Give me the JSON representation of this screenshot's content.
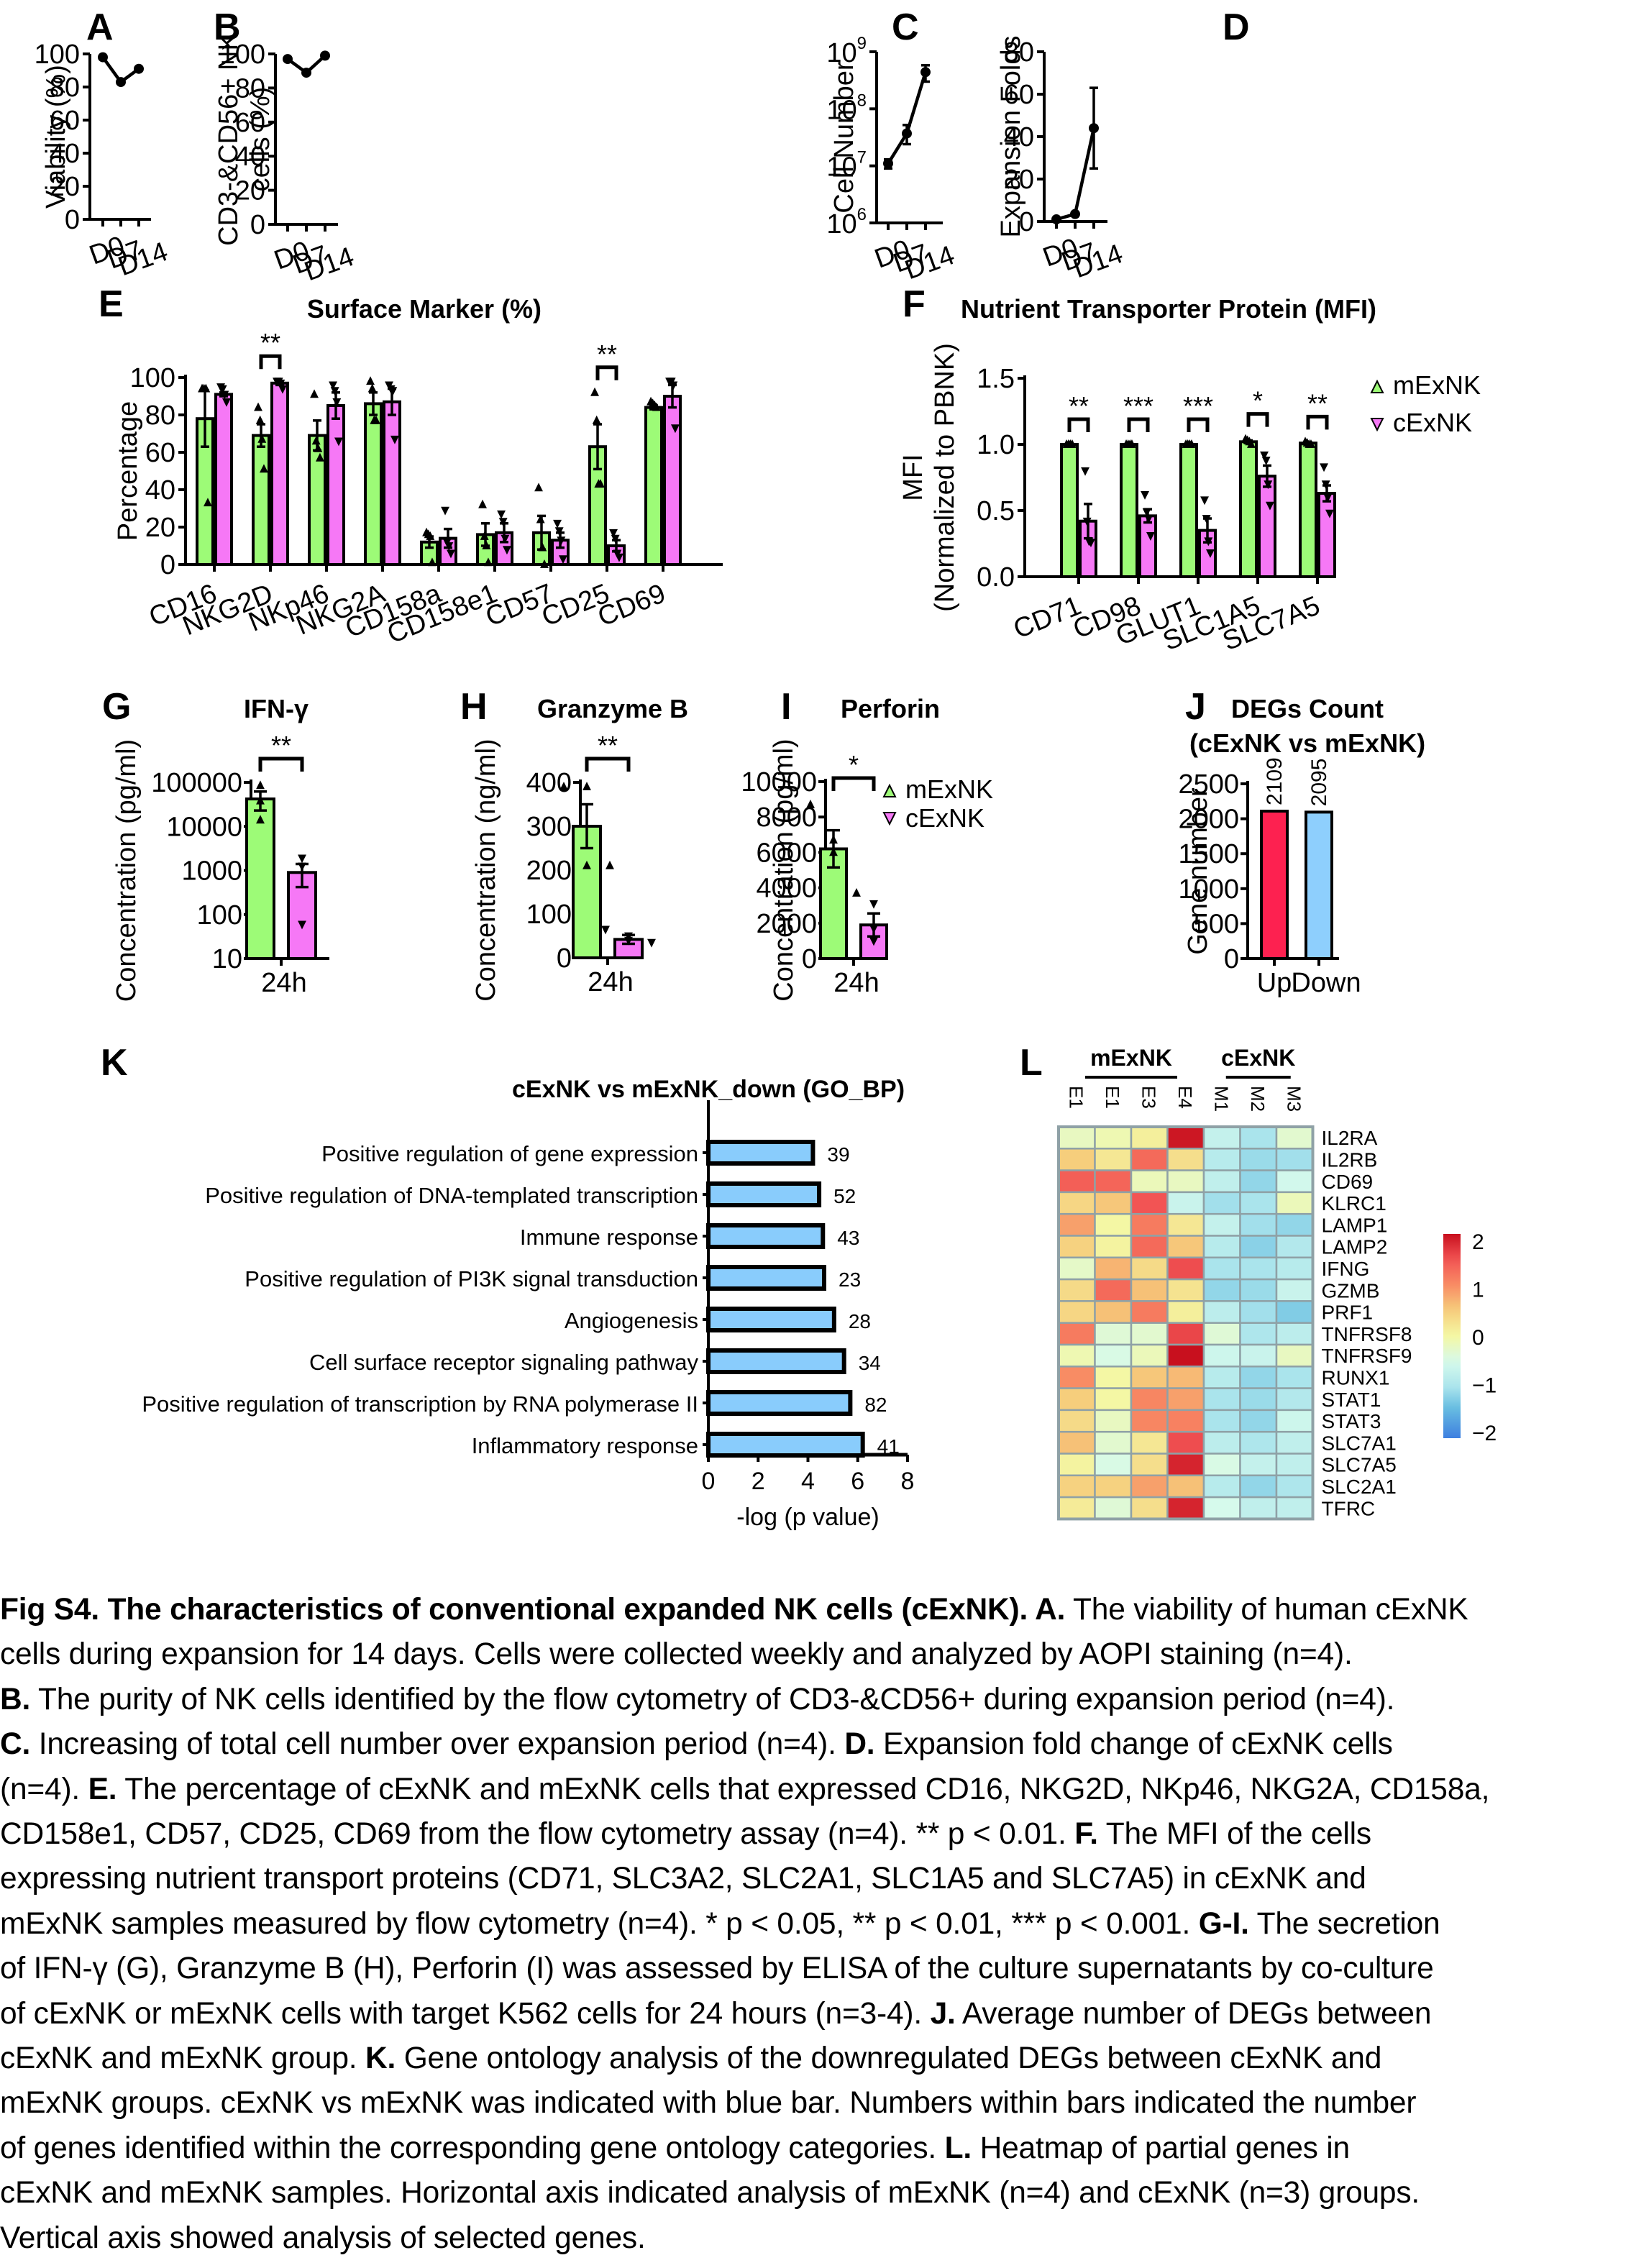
{
  "colors": {
    "mExNK": "#9dfb77",
    "cExNK": "#f678f6",
    "up": "#fd2150",
    "down": "#8ecffd",
    "go_bar": "#89ccfc",
    "heat_low": "#3d7fe0",
    "heat_mid": "#f8f7a6",
    "heat_high": "#c8101e",
    "heat_border": "#8fa1a6"
  },
  "legend": {
    "mExNK": "mExNK",
    "cExNK": "cExNK"
  },
  "chart_data": [
    {
      "panel": "A",
      "type": "line",
      "title": "",
      "xlabel": "",
      "ylabel": "Viability (%)",
      "categories": [
        "D0",
        "D7",
        "D14"
      ],
      "values": [
        98,
        83,
        91
      ],
      "yticks": [
        "0",
        "20",
        "40",
        "60",
        "80",
        "100"
      ],
      "ylim": [
        0,
        100
      ],
      "yscale": "linear"
    },
    {
      "panel": "B",
      "type": "line",
      "title": "",
      "xlabel": "",
      "ylabel_lines": [
        "CD3-&CD56+ NK",
        "cells (%)"
      ],
      "categories": [
        "D0",
        "D7",
        "D14"
      ],
      "values": [
        97,
        89,
        99
      ],
      "yticks": [
        "0",
        "20",
        "40",
        "60",
        "80",
        "100"
      ],
      "ylim": [
        0,
        100
      ],
      "yscale": "linear"
    },
    {
      "panel": "C",
      "type": "line",
      "title": "",
      "xlabel": "",
      "ylabel": "Cell Number",
      "categories": [
        "D0",
        "D7",
        "D14"
      ],
      "values": [
        11000000,
        37000000,
        440000000
      ],
      "err_low": [
        9000000,
        24000000,
        300000000
      ],
      "err_high": [
        13000000,
        52000000,
        580000000
      ],
      "yticks_exp": [
        "6",
        "7",
        "8",
        "9"
      ],
      "ylim": [
        1000000,
        1000000000
      ],
      "yscale": "log"
    },
    {
      "panel": "D",
      "type": "line",
      "title": "",
      "xlabel": "",
      "ylabel": "Expansion Folds",
      "categories": [
        "D0",
        "D7",
        "D14"
      ],
      "values": [
        1,
        3.5,
        44
      ],
      "err_low": [
        1,
        3.5,
        25
      ],
      "err_high": [
        1,
        3.5,
        63
      ],
      "yticks": [
        "0",
        "20",
        "40",
        "60",
        "80"
      ],
      "ylim": [
        0,
        80
      ],
      "yscale": "linear"
    },
    {
      "panel": "E",
      "type": "bar",
      "title": "Surface Marker (%)",
      "xlabel": "",
      "ylabel": "Percentage",
      "categories": [
        "CD16",
        "NKG2D",
        "NKp46",
        "NKG2A",
        "CD158a",
        "CD158e1",
        "CD57",
        "CD25",
        "CD69"
      ],
      "series": [
        {
          "name": "mExNK",
          "values": [
            78,
            69,
            69,
            86,
            12,
            16,
            17,
            63,
            84
          ],
          "sem": [
            15,
            6,
            8,
            6,
            3,
            6,
            9,
            12,
            1
          ],
          "points": [
            [
              94,
              94,
              94,
              33
            ],
            [
              84,
              77,
              67,
              51
            ],
            [
              91,
              66,
              62,
              57
            ],
            [
              98,
              94,
              77,
              77
            ],
            [
              17,
              16,
              15,
              1
            ],
            [
              32,
              15,
              10,
              1
            ],
            [
              41,
              24,
              9,
              0
            ],
            [
              92,
              77,
              43,
              43
            ],
            [
              87,
              86,
              85,
              84
            ]
          ]
        },
        {
          "name": "cExNK",
          "values": [
            91,
            97,
            85,
            87,
            14,
            17,
            13,
            10,
            90
          ],
          "sem": [
            1,
            1,
            7,
            7,
            5,
            5,
            4,
            3,
            6
          ],
          "points": [
            [
              95,
              94,
              91,
              87
            ],
            [
              98,
              98,
              97,
              94
            ],
            [
              96,
              93,
              87,
              66
            ],
            [
              96,
              94,
              93,
              67
            ],
            [
              29,
              12,
              10,
              6
            ],
            [
              27,
              23,
              14,
              8
            ],
            [
              22,
              18,
              13,
              3
            ],
            [
              17,
              14,
              6,
              4
            ],
            [
              98,
              98,
              96,
              73
            ]
          ]
        }
      ],
      "significance": [
        {
          "category": "NKG2D",
          "label": "**"
        },
        {
          "category": "CD25",
          "label": "**"
        }
      ],
      "yticks": [
        "0",
        "20",
        "40",
        "60",
        "80",
        "100"
      ],
      "ylim": [
        0,
        100
      ]
    },
    {
      "panel": "F",
      "type": "bar",
      "title": "Nutrient Transporter Protein (MFI)",
      "xlabel": "",
      "ylabel_lines": [
        "MFI",
        "(Normalized to PBNK)"
      ],
      "categories": [
        "CD71",
        "CD98",
        "GLUT1",
        "SLC1A5",
        "SLC7A5"
      ],
      "series": [
        {
          "name": "mExNK",
          "values": [
            1.0,
            1.0,
            1.0,
            1.02,
            1.01
          ],
          "sem": [
            0,
            0,
            0,
            0.01,
            0.005
          ],
          "points": [
            [
              1,
              1,
              1,
              1
            ],
            [
              1,
              1,
              1,
              1
            ],
            [
              1,
              1,
              1,
              1
            ],
            [
              1.04,
              1.03,
              1.02,
              1.0
            ],
            [
              1.02,
              1.01,
              1.0,
              1.0
            ]
          ]
        },
        {
          "name": "cExNK",
          "values": [
            0.42,
            0.46,
            0.35,
            0.76,
            0.63
          ],
          "sem": [
            0.13,
            0.05,
            0.09,
            0.08,
            0.06
          ],
          "points": [
            [
              0.8,
              0.42,
              0.27,
              0.26
            ],
            [
              0.62,
              0.49,
              0.44,
              0.31
            ],
            [
              0.58,
              0.44,
              0.27,
              0.18
            ],
            [
              0.92,
              0.88,
              0.7,
              0.54
            ],
            [
              0.83,
              0.7,
              0.6,
              0.48
            ]
          ]
        }
      ],
      "significance": [
        {
          "category": "CD71",
          "label": "**"
        },
        {
          "category": "CD98",
          "label": "***"
        },
        {
          "category": "GLUT1",
          "label": "***"
        },
        {
          "category": "SLC1A5",
          "label": "*"
        },
        {
          "category": "SLC7A5",
          "label": "**"
        }
      ],
      "yticks": [
        "0.0",
        "0.5",
        "1.0",
        "1.5"
      ],
      "ylim": [
        0,
        1.5
      ]
    },
    {
      "panel": "G",
      "type": "bar",
      "title": "IFN-γ",
      "xlabel": "",
      "ylabel": "Concentration (pg/ml)",
      "categories": [
        "24h"
      ],
      "series": [
        {
          "name": "mExNK",
          "values": [
            42000
          ],
          "err_low": [
            23000
          ],
          "err_high": [
            62000
          ],
          "points": [
            [
              85000,
              38000,
              14000
            ]
          ]
        },
        {
          "name": "cExNK",
          "values": [
            900
          ],
          "err_low": [
            420
          ],
          "err_high": [
            1400
          ],
          "points": [
            [
              1900,
              1250,
              60
            ]
          ]
        }
      ],
      "significance": [
        {
          "label": "**"
        }
      ],
      "yticks": [
        "10",
        "100",
        "1000",
        "10000",
        "100000"
      ],
      "ylim": [
        10,
        100000
      ],
      "yscale": "log"
    },
    {
      "panel": "H",
      "type": "bar",
      "title": "Granzyme B",
      "xlabel": "",
      "ylabel": "Concentration (ng/ml)",
      "categories": [
        "24h"
      ],
      "series": [
        {
          "name": "mExNK",
          "values": [
            300
          ],
          "sem": [
            50
          ],
          "points": [
            [
              390,
              390,
              210,
              210
            ]
          ]
        },
        {
          "name": "cExNK",
          "values": [
            42
          ],
          "sem": [
            10
          ],
          "points": [
            [
              65,
              50,
              40,
              35
            ]
          ]
        }
      ],
      "significance": [
        {
          "label": "**"
        }
      ],
      "yticks": [
        "0",
        "100",
        "200",
        "300",
        "400"
      ],
      "ylim": [
        0,
        400
      ]
    },
    {
      "panel": "I",
      "type": "bar",
      "title": "Perforin",
      "xlabel": "",
      "ylabel": "Concentration (pg/ml)",
      "categories": [
        "24h"
      ],
      "series": [
        {
          "name": "mExNK",
          "values": [
            6200
          ],
          "sem": [
            1050
          ],
          "points": [
            [
              8700,
              6700,
              6000,
              3700
            ]
          ]
        },
        {
          "name": "cExNK",
          "values": [
            1900
          ],
          "sem": [
            650
          ],
          "points": [
            [
              3100,
              1700,
              1000
            ]
          ]
        }
      ],
      "significance": [
        {
          "label": "*"
        }
      ],
      "yticks": [
        "0",
        "2000",
        "4000",
        "6000",
        "8000",
        "10000"
      ],
      "ylim": [
        0,
        10000
      ]
    },
    {
      "panel": "J",
      "type": "bar",
      "title_lines": [
        "DEGs Count",
        "(cExNK vs mExNK)"
      ],
      "xlabel": "",
      "ylabel": "Gene number",
      "categories": [
        "Up",
        "Down"
      ],
      "values": [
        2109,
        2095
      ],
      "labels": [
        "2109",
        "2095"
      ],
      "yticks": [
        "0",
        "500",
        "1000",
        "1500",
        "2000",
        "2500"
      ],
      "ylim": [
        0,
        2500
      ]
    },
    {
      "panel": "K",
      "type": "bar",
      "orientation": "horizontal",
      "title": "cExNK vs mExNK_down (GO_BP)",
      "xlabel": "-log (p value)",
      "ylabel": "",
      "categories": [
        "Positive regulation of gene expression",
        "Positive regulation of DNA-templated transcription",
        "Immune response",
        "Positive regulation of PI3K signal transduction",
        "Angiogenesis",
        "Cell surface receptor signaling pathway",
        "Positive regulation of transcription by RNA polymerase II",
        "Inflammatory response"
      ],
      "values": [
        4.2,
        4.45,
        4.6,
        4.65,
        5.05,
        5.45,
        5.7,
        6.2
      ],
      "gene_counts": [
        "39",
        "52",
        "43",
        "23",
        "28",
        "34",
        "82",
        "41"
      ],
      "xticks": [
        "0",
        "2",
        "4",
        "6",
        "8"
      ],
      "xlim": [
        0,
        8
      ]
    },
    {
      "panel": "L",
      "type": "heatmap",
      "groups": [
        {
          "name": "mExNK",
          "columns": 4
        },
        {
          "name": "cExNK",
          "columns": 3
        }
      ],
      "columns": [
        "E1",
        "E1",
        "E3",
        "E4",
        "M1",
        "M2",
        "M3"
      ],
      "rows": [
        "IL2RA",
        "IL2RB",
        "CD69",
        "KLRC1",
        "LAMP1",
        "LAMP2",
        "IFNG",
        "GZMB",
        "PRF1",
        "TNFRSF8",
        "TNFRSF9",
        "RUNX1",
        "STAT1",
        "STAT3",
        "SLC7A1",
        "SLC7A5",
        "SLC2A1",
        "TFRC"
      ],
      "values": [
        [
          -0.2,
          -0.1,
          0.1,
          1.95,
          -0.7,
          -1.0,
          -0.3
        ],
        [
          0.5,
          0.2,
          1.3,
          0.3,
          -0.85,
          -1.1,
          -1.05
        ],
        [
          1.4,
          1.35,
          -0.15,
          -0.2,
          -0.75,
          -1.15,
          -0.55
        ],
        [
          0.4,
          0.55,
          1.5,
          -0.65,
          -1.05,
          -1.0,
          -0.15
        ],
        [
          0.85,
          0.0,
          1.15,
          0.2,
          -0.7,
          -1.05,
          -1.15
        ],
        [
          0.45,
          0.05,
          1.3,
          0.55,
          -0.85,
          -1.2,
          -0.9
        ],
        [
          -0.25,
          0.7,
          0.35,
          1.55,
          -1.0,
          -1.0,
          -0.85
        ],
        [
          0.35,
          1.3,
          0.6,
          0.25,
          -1.15,
          -1.1,
          -0.65
        ],
        [
          0.4,
          0.6,
          1.15,
          0.1,
          -0.8,
          -1.05,
          -1.25
        ],
        [
          1.15,
          -0.35,
          -0.3,
          1.6,
          -0.35,
          -0.95,
          -0.8
        ],
        [
          -0.1,
          -0.45,
          -0.15,
          2.15,
          -0.6,
          -0.65,
          -0.2
        ],
        [
          1.0,
          0.0,
          0.55,
          0.65,
          -0.85,
          -1.15,
          -1.0
        ],
        [
          0.5,
          0.0,
          1.05,
          0.85,
          -1.0,
          -1.1,
          -0.9
        ],
        [
          0.35,
          -0.2,
          1.05,
          1.1,
          -1.0,
          -1.15,
          -0.6
        ],
        [
          0.6,
          -0.3,
          0.2,
          1.55,
          -0.8,
          -0.95,
          -0.75
        ],
        [
          0.05,
          -0.45,
          0.3,
          1.85,
          -0.45,
          -0.7,
          -0.75
        ],
        [
          0.45,
          0.45,
          0.85,
          0.6,
          -0.85,
          -1.15,
          -0.95
        ],
        [
          0.15,
          -0.35,
          0.3,
          1.85,
          -0.5,
          -0.75,
          -0.75
        ]
      ],
      "colorbar_ticks": [
        "2",
        "1",
        "0",
        "−1",
        "−2"
      ],
      "range": [
        -2,
        2
      ]
    }
  ],
  "panel_letters": [
    "A",
    "B",
    "C",
    "D",
    "E",
    "F",
    "G",
    "H",
    "I",
    "J",
    "K",
    "L"
  ],
  "caption": {
    "lines": [
      [
        {
          "b": "Fig S4. The characteristics of conventional expanded NK cells (cExNK). A."
        },
        {
          "t": " The viability of human cExNK"
        }
      ],
      [
        {
          "t": "cells during expansion for 14 days. Cells were collected weekly and analyzed by AOPI staining (n=4)."
        }
      ],
      [
        {
          "b": "B."
        },
        {
          "t": " The purity of NK cells identified by the flow cytometry of CD3-&CD56+ during expansion period (n=4)."
        }
      ],
      [
        {
          "b": "C."
        },
        {
          "t": " Increasing of total cell number over expansion period (n=4). "
        },
        {
          "b": "D."
        },
        {
          "t": " Expansion fold change of cExNK cells"
        }
      ],
      [
        {
          "t": "(n=4). "
        },
        {
          "b": "E."
        },
        {
          "t": " The percentage of cExNK and mExNK cells that expressed CD16, NKG2D, NKp46, NKG2A, CD158a,"
        }
      ],
      [
        {
          "t": "CD158e1, CD57, CD25, CD69 from the flow cytometry assay (n=4). ** p < 0.01. "
        },
        {
          "b": "F."
        },
        {
          "t": " The MFI of the cells"
        }
      ],
      [
        {
          "t": "expressing nutrient transport proteins (CD71, SLC3A2, SLC2A1, SLC1A5 and SLC7A5) in cExNK and"
        }
      ],
      [
        {
          "t": "mExNK samples measured by flow cytometry (n=4). * p < 0.05, ** p < 0.01, *** p < 0.001. "
        },
        {
          "b": "G-I."
        },
        {
          "t": " The secretion"
        }
      ],
      [
        {
          "t": "of IFN-γ (G), Granzyme B (H), Perforin (I) was assessed by ELISA of the culture supernatants by co-culture"
        }
      ],
      [
        {
          "t": "of cExNK or mExNK cells with target K562 cells for 24 hours (n=3-4). "
        },
        {
          "b": "J."
        },
        {
          "t": " Average number of DEGs between"
        }
      ],
      [
        {
          "t": "cExNK and mExNK group. "
        },
        {
          "b": "K."
        },
        {
          "t": " Gene ontology analysis of the downregulated DEGs between cExNK and"
        }
      ],
      [
        {
          "t": "mExNK groups. cExNK vs mExNK was indicated with blue bar. Numbers within bars indicated the number"
        }
      ],
      [
        {
          "t": "of genes identified within the corresponding gene ontology categories. "
        },
        {
          "b": "L."
        },
        {
          "t": " Heatmap of partial genes in"
        }
      ],
      [
        {
          "t": "cExNK and mExNK samples. Horizontal axis indicated analysis of mExNK (n=4) and cExNK (n=3) groups."
        }
      ],
      [
        {
          "t": "Vertical axis showed analysis of selected genes."
        }
      ]
    ]
  }
}
